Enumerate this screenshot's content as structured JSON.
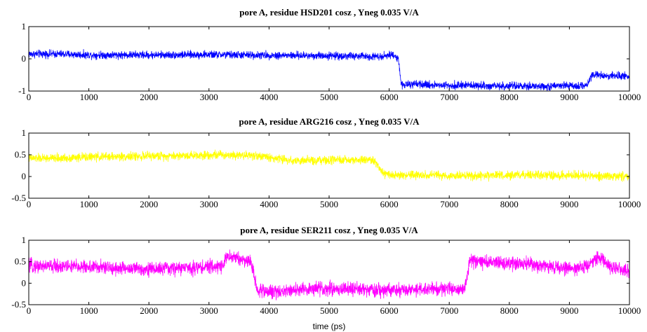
{
  "xlabel": "time (ps)",
  "chart_data": [
    {
      "type": "line",
      "title": "pore A, residue HSD201 cosz , Yneg 0.035 V/A",
      "xlim": [
        0,
        10000
      ],
      "ylim": [
        -1,
        1
      ],
      "xticks": [
        0,
        1000,
        2000,
        3000,
        4000,
        5000,
        6000,
        7000,
        8000,
        9000,
        10000
      ],
      "yticks": [
        -1,
        0,
        1
      ],
      "grid": false,
      "series": [
        {
          "color": "#0000ff",
          "noise": 0.06,
          "x": [
            0,
            500,
            1000,
            1500,
            2000,
            2500,
            3000,
            3500,
            4000,
            4500,
            5000,
            5500,
            5800,
            6050,
            6150,
            6200,
            6500,
            7000,
            7500,
            8000,
            8500,
            9000,
            9300,
            9350,
            9400,
            9700,
            10000
          ],
          "y": [
            0.15,
            0.15,
            0.12,
            0.12,
            0.12,
            0.12,
            0.13,
            0.12,
            0.11,
            0.1,
            0.1,
            0.08,
            0.08,
            0.12,
            0.05,
            -0.8,
            -0.8,
            -0.82,
            -0.83,
            -0.85,
            -0.86,
            -0.84,
            -0.82,
            -0.55,
            -0.5,
            -0.52,
            -0.55
          ]
        }
      ]
    },
    {
      "type": "line",
      "title": "pore A, residue ARG216 cosz , Yneg 0.035 V/A",
      "xlim": [
        0,
        10000
      ],
      "ylim": [
        -0.5,
        1
      ],
      "xticks": [
        0,
        1000,
        2000,
        3000,
        4000,
        5000,
        6000,
        7000,
        8000,
        9000,
        10000
      ],
      "yticks": [
        -0.5,
        0,
        0.5,
        1
      ],
      "grid": false,
      "series": [
        {
          "color": "#ffff00",
          "noise": 0.05,
          "x": [
            0,
            500,
            1000,
            1500,
            2000,
            2500,
            3000,
            3500,
            3800,
            4200,
            4500,
            5000,
            5500,
            5750,
            5850,
            5900,
            6200,
            7000,
            7500,
            8000,
            8500,
            9000,
            9500,
            10000
          ],
          "y": [
            0.42,
            0.42,
            0.45,
            0.46,
            0.47,
            0.48,
            0.5,
            0.5,
            0.48,
            0.4,
            0.36,
            0.37,
            0.38,
            0.38,
            0.15,
            0.05,
            0.03,
            0.02,
            0.01,
            0.03,
            0.03,
            0.02,
            0.02,
            0.0
          ]
        }
      ]
    },
    {
      "type": "line",
      "title": "pore A, residue SER211 cosz , Yneg 0.035 V/A",
      "xlim": [
        0,
        10000
      ],
      "ylim": [
        -0.5,
        1
      ],
      "xticks": [
        0,
        1000,
        2000,
        3000,
        4000,
        5000,
        6000,
        7000,
        8000,
        9000,
        10000
      ],
      "yticks": [
        -0.5,
        0,
        0.5,
        1
      ],
      "grid": false,
      "series": [
        {
          "color": "#ff00ff",
          "noise": 0.08,
          "x": [
            0,
            500,
            1000,
            1500,
            2000,
            2500,
            3000,
            3200,
            3300,
            3400,
            3550,
            3700,
            3800,
            4000,
            4500,
            5000,
            5500,
            6000,
            6500,
            7000,
            7250,
            7350,
            7500,
            8000,
            8500,
            9000,
            9300,
            9500,
            9700,
            10000
          ],
          "y": [
            0.4,
            0.4,
            0.38,
            0.35,
            0.33,
            0.35,
            0.38,
            0.4,
            0.6,
            0.62,
            0.55,
            0.5,
            -0.15,
            -0.2,
            -0.15,
            -0.12,
            -0.15,
            -0.18,
            -0.15,
            -0.12,
            -0.15,
            0.55,
            0.5,
            0.45,
            0.42,
            0.35,
            0.4,
            0.6,
            0.35,
            0.3
          ]
        }
      ]
    }
  ]
}
